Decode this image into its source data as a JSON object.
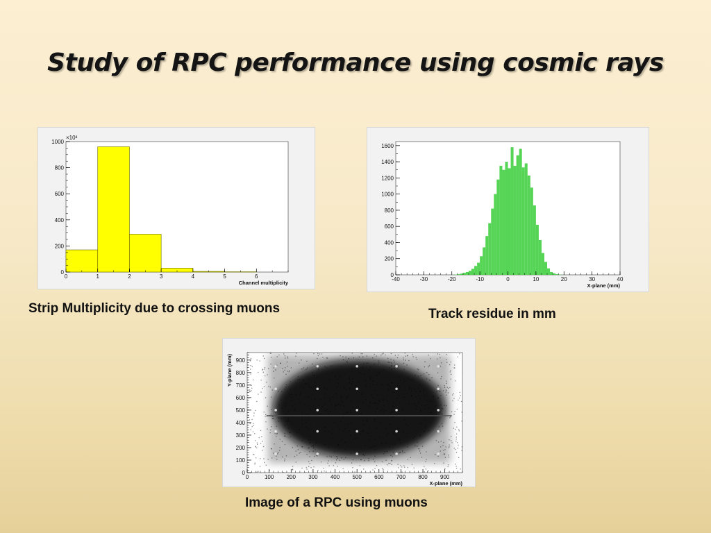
{
  "slide": {
    "title": "Study of RPC performance using cosmic rays",
    "captions": {
      "multiplicity": "Strip Multiplicity due to crossing muons",
      "residue": "Track residue in mm",
      "image": "Image  of a RPC using muons"
    }
  },
  "colors": {
    "multiplicity_fill": "#ffff00",
    "residue_fill": "#55d455",
    "image_points": "#000000"
  },
  "chart_data": [
    {
      "type": "bar",
      "xlabel": "Channel multiplicity",
      "exponent_label": "×10³",
      "xlim": [
        0,
        7
      ],
      "ylim": [
        0,
        1000
      ],
      "xticks": [
        "0",
        "1",
        "2",
        "3",
        "4",
        "5",
        "6"
      ],
      "yticks": [
        "0",
        "200",
        "400",
        "600",
        "800",
        "1000"
      ],
      "bin_edges": [
        0,
        1,
        2,
        3,
        4,
        5,
        6,
        7
      ],
      "values": [
        170,
        960,
        290,
        30,
        5,
        2,
        0
      ]
    },
    {
      "type": "bar",
      "xlabel": "X-plane (mm)",
      "xlim": [
        -40,
        40
      ],
      "ylim": [
        0,
        1650
      ],
      "xticks": [
        "-40",
        "-30",
        "-20",
        "-10",
        "0",
        "10",
        "20",
        "30",
        "40"
      ],
      "yticks": [
        "0",
        "200",
        "400",
        "600",
        "800",
        "1000",
        "1200",
        "1400",
        "1600"
      ],
      "bin_start": -20,
      "bin_width": 1,
      "values": [
        2,
        4,
        8,
        15,
        25,
        35,
        50,
        75,
        110,
        150,
        230,
        340,
        480,
        640,
        820,
        1000,
        1180,
        1350,
        1300,
        1400,
        1320,
        1580,
        1350,
        1480,
        1560,
        1330,
        1380,
        1230,
        1080,
        860,
        620,
        430,
        270,
        160,
        80,
        35,
        18,
        8,
        3,
        1
      ]
    },
    {
      "type": "heatmap",
      "xlabel": "X-plane (mm)",
      "ylabel": "Y-plane (mm)",
      "xlim": [
        0,
        980
      ],
      "ylim": [
        0,
        960
      ],
      "xticks": [
        "0",
        "100",
        "200",
        "300",
        "400",
        "500",
        "600",
        "700",
        "800",
        "900"
      ],
      "yticks": [
        "0",
        "100",
        "200",
        "300",
        "400",
        "500",
        "600",
        "700",
        "800",
        "900"
      ],
      "dense_region": {
        "x": [
          120,
          900
        ],
        "y": [
          120,
          900
        ]
      },
      "bright_spots": [
        [
          130,
          850
        ],
        [
          320,
          850
        ],
        [
          500,
          850
        ],
        [
          680,
          850
        ],
        [
          870,
          850
        ],
        [
          130,
          670
        ],
        [
          320,
          670
        ],
        [
          500,
          670
        ],
        [
          680,
          670
        ],
        [
          870,
          670
        ],
        [
          130,
          500
        ],
        [
          320,
          500
        ],
        [
          500,
          500
        ],
        [
          680,
          500
        ],
        [
          870,
          500
        ],
        [
          130,
          330
        ],
        [
          320,
          330
        ],
        [
          500,
          330
        ],
        [
          680,
          330
        ],
        [
          870,
          330
        ],
        [
          130,
          150
        ],
        [
          320,
          150
        ],
        [
          500,
          150
        ],
        [
          680,
          150
        ],
        [
          870,
          150
        ]
      ]
    }
  ]
}
